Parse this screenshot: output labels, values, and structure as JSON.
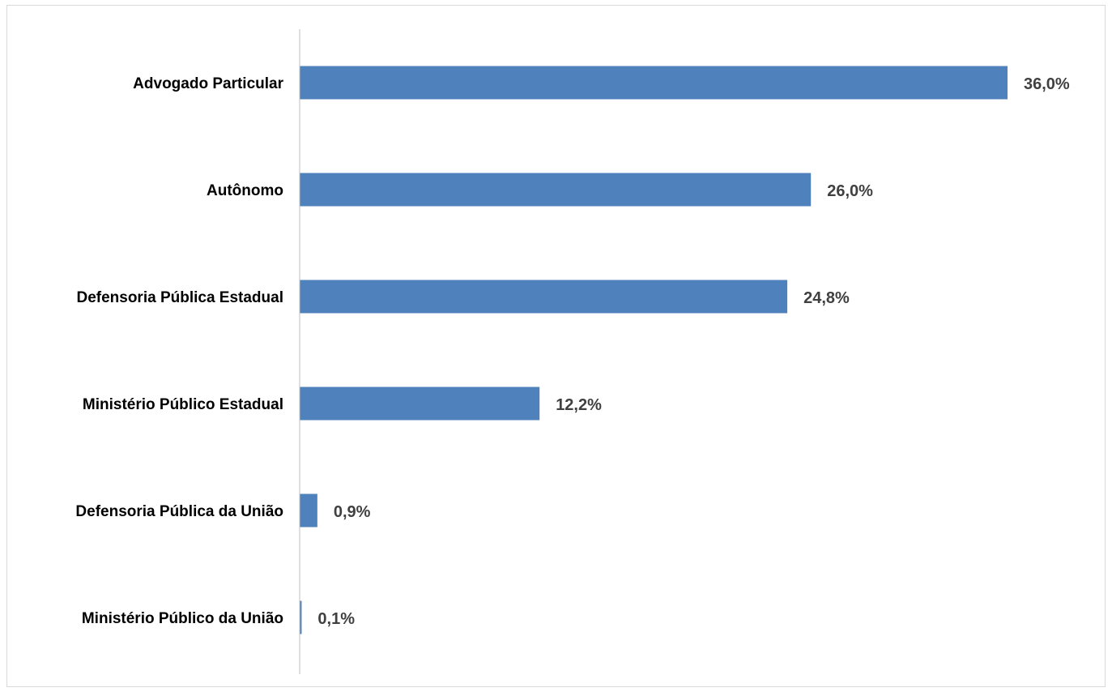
{
  "chart_data": {
    "type": "bar",
    "orientation": "horizontal",
    "categories": [
      "Advogado Particular",
      "Autônomo",
      "Defensoria Pública Estadual",
      "Ministério Público Estadual",
      "Defensoria Pública da União",
      "Ministério Público da União"
    ],
    "values": [
      36.0,
      26.0,
      24.8,
      12.2,
      0.9,
      0.1
    ],
    "data_labels": [
      "36,0%",
      "26,0%",
      "24,8%",
      "12,2%",
      "0,9%",
      "0,1%"
    ],
    "unit": "%",
    "xlim": [
      0,
      36.0
    ],
    "grid": false,
    "legend": "none",
    "bar_color": "#4f81bd",
    "axis_color": "#bfbfbf",
    "label_color": "#404040"
  }
}
